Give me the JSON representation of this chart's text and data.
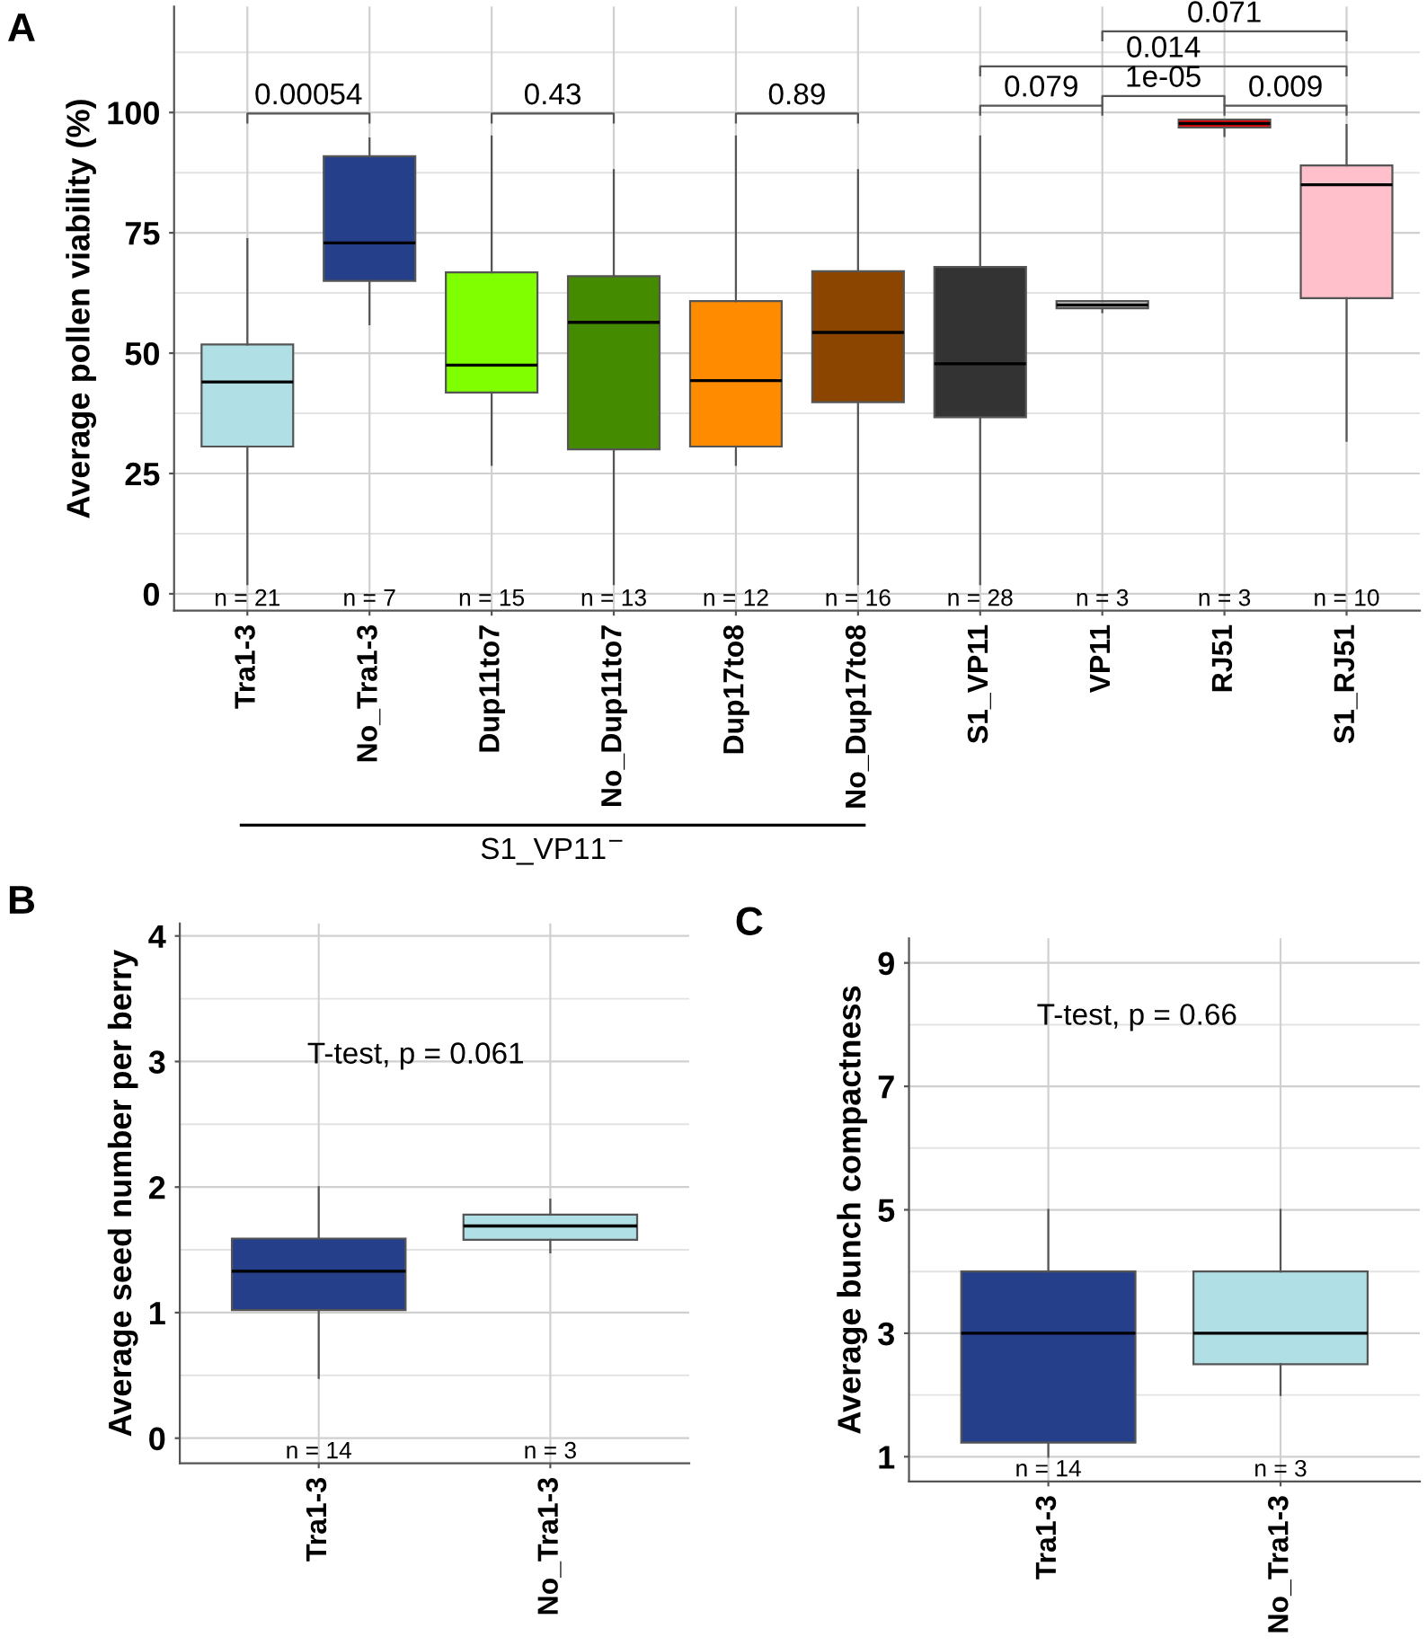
{
  "chart_data": [
    {
      "type": "box",
      "title": "A",
      "ylabel": "Average pollen viability (%)",
      "categories": [
        "Tra1-3",
        "No_Tra1-3",
        "Dup11to7",
        "No_Dup11to7",
        "Dup17to8",
        "No_Dup17to8",
        "S1_VP11",
        "VP11",
        "RJ51",
        "S1_RJ51"
      ],
      "colors": [
        "#b0e0e6",
        "#253f8a",
        "#7fff00",
        "#458b00",
        "#ff8c00",
        "#8b4500",
        "#333333",
        "#d3d3d3",
        "#ff0000",
        "#ffc0cb"
      ],
      "boxes": [
        {
          "low": 2,
          "q1": 30.6,
          "median": 44,
          "q3": 51.8,
          "high": 73.7
        },
        {
          "low": 56,
          "q1": 65,
          "median": 72.9,
          "q3": 90.9,
          "high": 94.6
        },
        {
          "low": 26.8,
          "q1": 41.8,
          "median": 47.5,
          "q3": 66.8,
          "high": 95
        },
        {
          "low": 2,
          "q1": 30,
          "median": 56.4,
          "q3": 66,
          "high": 88
        },
        {
          "low": 26.8,
          "q1": 30.6,
          "median": 44.3,
          "q3": 60.8,
          "high": 95
        },
        {
          "low": 2,
          "q1": 39.8,
          "median": 54.3,
          "q3": 67,
          "high": 88
        },
        {
          "low": 2,
          "q1": 36.7,
          "median": 47.8,
          "q3": 67.9,
          "high": 95
        },
        {
          "low": 58.5,
          "q1": 59.3,
          "median": 60,
          "q3": 60.8,
          "high": 60.8
        },
        {
          "low": 95.1,
          "q1": 96.9,
          "median": 97.7,
          "q3": 98.5,
          "high": 98.5
        },
        {
          "low": 31.8,
          "q1": 61.4,
          "median": 85,
          "q3": 89,
          "high": 97.4
        }
      ],
      "ylim": [
        -3.5,
        122
      ],
      "yticks": [
        0,
        25,
        50,
        75,
        100
      ],
      "grid": true,
      "annotations": [
        "0.00054",
        "0.43",
        "0.89",
        "0.079",
        "1e-05",
        "0.009",
        "0.014",
        "0.071",
        "n = 21",
        "n = 7",
        "n = 15",
        "n = 13",
        "n = 12",
        "n = 16",
        "n = 28",
        "n = 3",
        "n = 3",
        "n = 10",
        "S1_VP11$^{−}$"
      ]
    },
    {
      "type": "box",
      "title": "B",
      "ylabel": "Average seed number per berry",
      "categories": [
        "Tra1-3",
        "No_Tra1-3"
      ],
      "colors": [
        "#253f8a",
        "#b0e0e6"
      ],
      "boxes": [
        {
          "low": 0.48,
          "q1": 1.02,
          "median": 1.33,
          "q3": 1.59,
          "high": 2.0
        },
        {
          "low": 1.48,
          "q1": 1.58,
          "median": 1.69,
          "q3": 1.78,
          "high": 1.9
        }
      ],
      "ylim": [
        -0.2,
        4.1
      ],
      "yticks": [
        0,
        1,
        2,
        3,
        4
      ],
      "grid": true,
      "annotations": [
        "T-test, p = 0.061",
        "n = 14",
        "n = 3"
      ]
    },
    {
      "type": "box",
      "title": "C",
      "ylabel": "Average bunch compactness",
      "categories": [
        "Tra1-3",
        "No_Tra1-3"
      ],
      "colors": [
        "#253f8a",
        "#b0e0e6"
      ],
      "boxes": [
        {
          "low": 1,
          "q1": 1.23,
          "median": 3,
          "q3": 4,
          "high": 5
        },
        {
          "low": 2,
          "q1": 2.5,
          "median": 3,
          "q3": 4,
          "high": 5
        }
      ],
      "ylim": [
        0.6,
        9.4
      ],
      "yticks": [
        1,
        3,
        5,
        7,
        9
      ],
      "grid": true,
      "annotations": [
        "T-test, p = 0.66",
        "n = 14",
        "n = 3"
      ]
    }
  ]
}
